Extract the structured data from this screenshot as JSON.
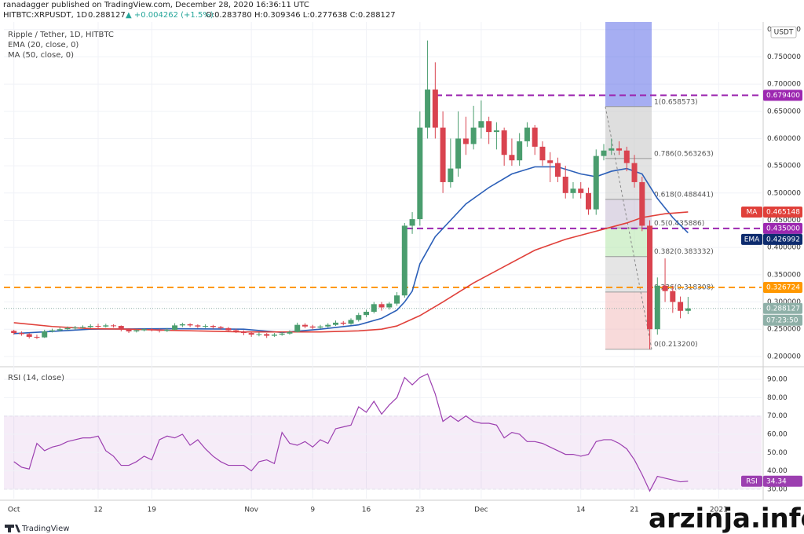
{
  "header": {
    "author_line": "ranadagger published on TradingView.com, December 28, 2020 16:36:11 UTC",
    "symbol": "HITBTC:XRPUSDT, 1D",
    "price": "0.288127",
    "change": "▲ +0.004262 (+1.5%)",
    "ohlc": "O:0.283780 H:0.309346 L:0.277638 C:0.288127"
  },
  "footer": {
    "brand": "TradingView",
    "watermark": "arzinja.info"
  },
  "chart_data": [
    {
      "type": "candlestick",
      "title": "Ripple / Tether, 1D, HITBTC",
      "unit": "USDT",
      "up_color": "#4a9d6e",
      "down_color": "#d9434f",
      "x": [
        0,
        1,
        2,
        3,
        4,
        5,
        6,
        7,
        8,
        9,
        10,
        11,
        12,
        13,
        14,
        15,
        16,
        17,
        18,
        19,
        20,
        21,
        22,
        23,
        24,
        25,
        26,
        27,
        28,
        29,
        30,
        31,
        32,
        33,
        34,
        35,
        36,
        37,
        38,
        39,
        40,
        41,
        42,
        43,
        44,
        45,
        46,
        47,
        48,
        49,
        50,
        51,
        52,
        53,
        54,
        55,
        56,
        57,
        58,
        59,
        60,
        61,
        62,
        63,
        64,
        65,
        66,
        67,
        68,
        69,
        70,
        71,
        72,
        73,
        74,
        75,
        76,
        77,
        78,
        79,
        80,
        81,
        82,
        83,
        84,
        85,
        86,
        87,
        88
      ],
      "open": [
        0.247,
        0.243,
        0.241,
        0.236,
        0.235,
        0.246,
        0.248,
        0.25,
        0.252,
        0.253,
        0.254,
        0.256,
        0.255,
        0.257,
        0.256,
        0.25,
        0.246,
        0.248,
        0.25,
        0.249,
        0.247,
        0.249,
        0.257,
        0.259,
        0.257,
        0.255,
        0.256,
        0.254,
        0.252,
        0.248,
        0.246,
        0.243,
        0.24,
        0.241,
        0.238,
        0.24,
        0.242,
        0.245,
        0.258,
        0.255,
        0.253,
        0.255,
        0.258,
        0.262,
        0.26,
        0.267,
        0.276,
        0.282,
        0.296,
        0.29,
        0.297,
        0.312,
        0.44,
        0.452,
        0.62,
        0.69,
        0.62,
        0.52,
        0.545,
        0.6,
        0.59,
        0.62,
        0.632,
        0.612,
        0.615,
        0.57,
        0.56,
        0.595,
        0.62,
        0.585,
        0.56,
        0.555,
        0.53,
        0.5,
        0.508,
        0.5,
        0.47,
        0.568,
        0.578,
        0.582,
        0.578,
        0.555,
        0.52,
        0.44,
        0.25,
        0.33,
        0.32,
        0.3,
        0.28378
      ],
      "high": [
        0.249,
        0.246,
        0.243,
        0.24,
        0.249,
        0.251,
        0.253,
        0.255,
        0.256,
        0.257,
        0.259,
        0.26,
        0.26,
        0.259,
        0.257,
        0.252,
        0.25,
        0.252,
        0.252,
        0.251,
        0.252,
        0.261,
        0.262,
        0.261,
        0.259,
        0.259,
        0.258,
        0.256,
        0.254,
        0.251,
        0.248,
        0.245,
        0.244,
        0.243,
        0.243,
        0.245,
        0.248,
        0.262,
        0.261,
        0.258,
        0.258,
        0.261,
        0.266,
        0.265,
        0.27,
        0.28,
        0.286,
        0.3,
        0.3,
        0.3,
        0.318,
        0.445,
        0.465,
        0.65,
        0.78,
        0.74,
        0.65,
        0.6,
        0.65,
        0.64,
        0.66,
        0.67,
        0.64,
        0.63,
        0.62,
        0.6,
        0.61,
        0.63,
        0.625,
        0.595,
        0.575,
        0.565,
        0.55,
        0.52,
        0.52,
        0.51,
        0.58,
        0.59,
        0.6,
        0.595,
        0.585,
        0.57,
        0.53,
        0.45,
        0.345,
        0.38,
        0.33,
        0.31,
        0.309346
      ],
      "low": [
        0.24,
        0.238,
        0.233,
        0.232,
        0.234,
        0.244,
        0.246,
        0.248,
        0.249,
        0.251,
        0.252,
        0.252,
        0.253,
        0.253,
        0.246,
        0.243,
        0.244,
        0.246,
        0.246,
        0.244,
        0.245,
        0.248,
        0.254,
        0.254,
        0.252,
        0.252,
        0.251,
        0.249,
        0.245,
        0.243,
        0.239,
        0.236,
        0.237,
        0.234,
        0.236,
        0.238,
        0.24,
        0.244,
        0.252,
        0.25,
        0.251,
        0.253,
        0.256,
        0.257,
        0.258,
        0.264,
        0.272,
        0.279,
        0.284,
        0.286,
        0.293,
        0.308,
        0.425,
        0.44,
        0.6,
        0.6,
        0.5,
        0.51,
        0.53,
        0.57,
        0.58,
        0.6,
        0.59,
        0.58,
        0.55,
        0.55,
        0.55,
        0.585,
        0.57,
        0.55,
        0.52,
        0.52,
        0.49,
        0.49,
        0.49,
        0.46,
        0.46,
        0.56,
        0.57,
        0.57,
        0.54,
        0.51,
        0.43,
        0.2132,
        0.24,
        0.3,
        0.28,
        0.27,
        0.277638
      ],
      "close": [
        0.243,
        0.241,
        0.236,
        0.235,
        0.246,
        0.248,
        0.25,
        0.252,
        0.253,
        0.254,
        0.256,
        0.255,
        0.257,
        0.256,
        0.25,
        0.246,
        0.248,
        0.25,
        0.249,
        0.247,
        0.249,
        0.257,
        0.259,
        0.257,
        0.255,
        0.256,
        0.254,
        0.252,
        0.248,
        0.246,
        0.243,
        0.24,
        0.241,
        0.238,
        0.24,
        0.242,
        0.245,
        0.258,
        0.255,
        0.253,
        0.255,
        0.258,
        0.262,
        0.26,
        0.267,
        0.276,
        0.282,
        0.296,
        0.29,
        0.297,
        0.312,
        0.44,
        0.452,
        0.62,
        0.69,
        0.62,
        0.52,
        0.545,
        0.6,
        0.59,
        0.62,
        0.632,
        0.612,
        0.615,
        0.57,
        0.56,
        0.595,
        0.62,
        0.585,
        0.56,
        0.555,
        0.53,
        0.5,
        0.508,
        0.5,
        0.47,
        0.568,
        0.578,
        0.582,
        0.578,
        0.555,
        0.52,
        0.44,
        0.25,
        0.33,
        0.32,
        0.3,
        0.28378,
        0.288127
      ],
      "series": [
        {
          "name": "EMA (20, close, 0)",
          "color": "#2b5fb8",
          "x": [
            0,
            10,
            20,
            30,
            35,
            40,
            45,
            48,
            50,
            51,
            52,
            53,
            55,
            57,
            59,
            62,
            65,
            68,
            71,
            74,
            76,
            78,
            80,
            82,
            84,
            86,
            88
          ],
          "values": [
            0.242,
            0.25,
            0.251,
            0.25,
            0.244,
            0.25,
            0.258,
            0.27,
            0.285,
            0.3,
            0.32,
            0.37,
            0.42,
            0.45,
            0.48,
            0.51,
            0.535,
            0.548,
            0.548,
            0.535,
            0.53,
            0.54,
            0.545,
            0.535,
            0.49,
            0.455,
            0.426992
          ]
        },
        {
          "name": "MA (50, close, 0)",
          "color": "#e0403a",
          "x": [
            0,
            5,
            10,
            15,
            20,
            30,
            40,
            45,
            48,
            50,
            53,
            56,
            60,
            64,
            68,
            72,
            76,
            80,
            82,
            85,
            88
          ],
          "values": [
            0.262,
            0.255,
            0.251,
            0.25,
            0.248,
            0.245,
            0.245,
            0.247,
            0.25,
            0.256,
            0.275,
            0.3,
            0.335,
            0.365,
            0.395,
            0.415,
            0.43,
            0.445,
            0.455,
            0.462,
            0.465148
          ]
        }
      ],
      "xlim": [
        -1.3,
        97.6
      ],
      "xticks": [
        {
          "value": 0,
          "label": "Oct"
        },
        {
          "value": 11,
          "label": "12"
        },
        {
          "value": 18,
          "label": "19"
        },
        {
          "value": 31,
          "label": "Nov"
        },
        {
          "value": 39,
          "label": "9"
        },
        {
          "value": 46,
          "label": "16"
        },
        {
          "value": 53,
          "label": "23"
        },
        {
          "value": 61,
          "label": "Dec"
        },
        {
          "value": 74,
          "label": "14"
        },
        {
          "value": 81,
          "label": "21"
        },
        {
          "value": 92,
          "label": "2021"
        }
      ],
      "ylim": [
        0.184,
        0.814
      ],
      "yticks": [
        {
          "value": 0.2,
          "label": "0.200000"
        },
        {
          "value": 0.25,
          "label": "0.250000"
        },
        {
          "value": 0.3,
          "label": "0.300000"
        },
        {
          "value": 0.35,
          "label": "0.350000"
        },
        {
          "value": 0.4,
          "label": "0.400000"
        },
        {
          "value": 0.45,
          "label": "0.450000"
        },
        {
          "value": 0.5,
          "label": "0.500000"
        },
        {
          "value": 0.55,
          "label": "0.550000"
        },
        {
          "value": 0.6,
          "label": "0.600000"
        },
        {
          "value": 0.65,
          "label": "0.650000"
        },
        {
          "value": 0.7,
          "label": "0.700000"
        },
        {
          "value": 0.75,
          "label": "0.750000"
        },
        {
          "value": 0.8,
          "label": "0.800000"
        }
      ],
      "grid": true,
      "axis_tags": [
        {
          "label": "0.679400",
          "value": 0.6794,
          "color": "#9c27b0",
          "line": "dashed"
        },
        {
          "name": "MA",
          "label": "0.465148",
          "value": 0.465148,
          "color": "#e0403a"
        },
        {
          "label": "0.435000",
          "value": 0.435,
          "color": "#9c27b0",
          "line": "dashed"
        },
        {
          "name": "EMA",
          "label": "0.426992",
          "value": 0.426992,
          "color": "#0d2b6e"
        },
        {
          "label": "0.326724",
          "value": 0.326724,
          "color": "#ff9800",
          "line": "dashed"
        },
        {
          "label": "0.288127",
          "value": 0.288127,
          "color": "#8fb0a8",
          "line": "dotted"
        }
      ],
      "countdown": "07:23:50",
      "fib_levels": [
        {
          "label": "1(0.658573)",
          "value": 0.658573,
          "color": "#c8c8c8"
        },
        {
          "label": "0.786(0.563263)",
          "value": 0.563263,
          "color": "#d0d0d0"
        },
        {
          "label": "0.618(0.488441)",
          "value": 0.488441,
          "color": "#c9bfd6"
        },
        {
          "label": "0.5(0.435886)",
          "value": 0.435886,
          "color": "#b9e8b0"
        },
        {
          "label": "0.382(0.383332)",
          "value": 0.383332,
          "color": "#d3d3d3"
        },
        {
          "label": "0.236(0.318308)",
          "value": 0.318308,
          "color": "#f3c2c2"
        },
        {
          "label": "0(0.213200)",
          "value": 0.2132,
          "color": "#f3c2c2"
        }
      ]
    },
    {
      "type": "line",
      "title": "RSI (14, close)",
      "name": "RSI",
      "color": "#9c3fb0",
      "x": [
        0,
        1,
        2,
        3,
        4,
        5,
        6,
        7,
        8,
        9,
        10,
        11,
        12,
        13,
        14,
        15,
        16,
        17,
        18,
        19,
        20,
        21,
        22,
        23,
        24,
        25,
        26,
        27,
        28,
        29,
        30,
        31,
        32,
        33,
        34,
        35,
        36,
        37,
        38,
        39,
        40,
        41,
        42,
        43,
        44,
        45,
        46,
        47,
        48,
        49,
        50,
        51,
        52,
        53,
        54,
        55,
        56,
        57,
        58,
        59,
        60,
        61,
        62,
        63,
        64,
        65,
        66,
        67,
        68,
        69,
        70,
        71,
        72,
        73,
        74,
        75,
        76,
        77,
        78,
        79,
        80,
        81,
        82,
        83,
        84,
        85,
        86,
        87,
        88
      ],
      "values": [
        45,
        42,
        41,
        55,
        51,
        53,
        54,
        56,
        57,
        58,
        58,
        59,
        51,
        48,
        43,
        43,
        45,
        48,
        46,
        57,
        59,
        58,
        60,
        54,
        57,
        52,
        48,
        45,
        43,
        43,
        43,
        40,
        45,
        46,
        44,
        61,
        55,
        54,
        56,
        53,
        57,
        55,
        63,
        64,
        65,
        75,
        72,
        78,
        71,
        76,
        80,
        91,
        87,
        91,
        93,
        82,
        67,
        70,
        67,
        70,
        67,
        66,
        66,
        65,
        58,
        61,
        60,
        56,
        56,
        55,
        53,
        51,
        49,
        49,
        48,
        49,
        56,
        57,
        57,
        55,
        52,
        46,
        38,
        29,
        37,
        36,
        35,
        34,
        34.34
      ],
      "ylim": [
        24.8,
        95.6
      ],
      "yticks": [
        {
          "value": 30,
          "label": "30.00"
        },
        {
          "value": 40,
          "label": "40.00"
        },
        {
          "value": 50,
          "label": "50.00"
        },
        {
          "value": 60,
          "label": "60.00"
        },
        {
          "value": 70,
          "label": "70.00"
        },
        {
          "value": 80,
          "label": "80.00"
        },
        {
          "value": 90,
          "label": "90.00"
        }
      ],
      "band": [
        30,
        70
      ],
      "tag": "34.34"
    }
  ]
}
